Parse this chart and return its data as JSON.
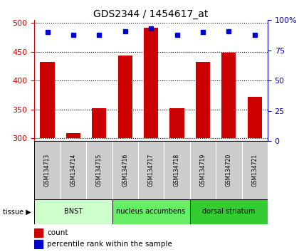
{
  "title": "GDS2344 / 1454617_at",
  "samples": [
    "GSM134713",
    "GSM134714",
    "GSM134715",
    "GSM134716",
    "GSM134717",
    "GSM134718",
    "GSM134719",
    "GSM134720",
    "GSM134721"
  ],
  "counts": [
    433,
    309,
    352,
    444,
    492,
    352,
    433,
    449,
    372
  ],
  "percentiles": [
    90,
    88,
    88,
    91,
    93,
    88,
    90,
    91,
    88
  ],
  "ylim_left": [
    295,
    505
  ],
  "ylim_right": [
    0,
    100
  ],
  "yticks_left": [
    300,
    350,
    400,
    450,
    500
  ],
  "yticks_right": [
    0,
    25,
    50,
    75,
    100
  ],
  "bar_color": "#cc0000",
  "dot_color": "#0000cc",
  "groups": [
    {
      "label": "BNST",
      "start": 0,
      "end": 2,
      "color": "#ccffcc"
    },
    {
      "label": "nucleus accumbens",
      "start": 3,
      "end": 5,
      "color": "#66ee66"
    },
    {
      "label": "dorsal striatum",
      "start": 6,
      "end": 8,
      "color": "#33cc33"
    }
  ],
  "tissue_label": "tissue",
  "legend_count": "count",
  "legend_pct": "percentile rank within the sample",
  "axis_left_color": "#cc0000",
  "axis_right_color": "#0000cc",
  "sample_box_color": "#cccccc",
  "base_value": 300
}
